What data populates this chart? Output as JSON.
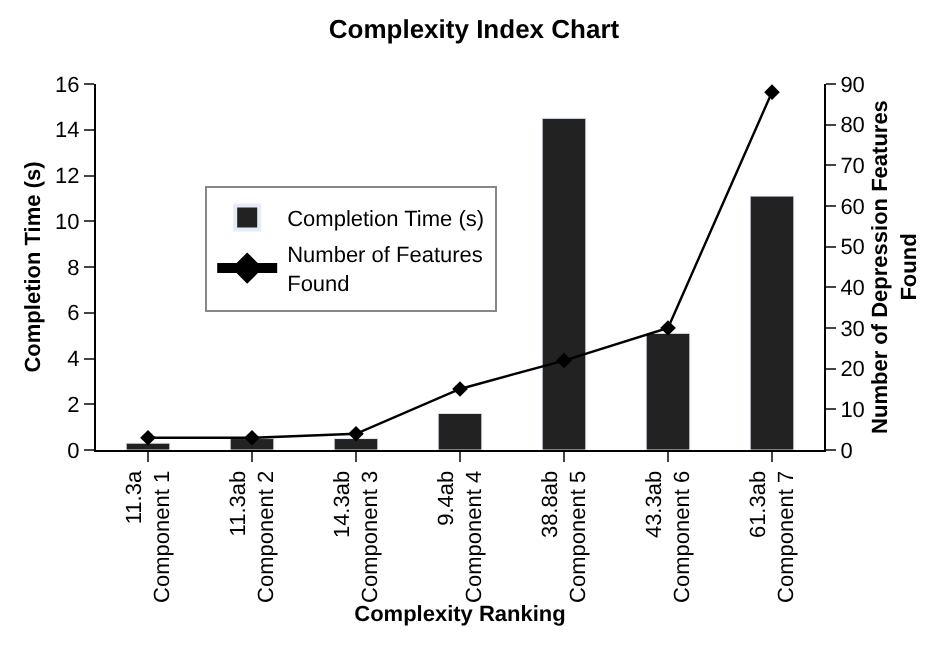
{
  "chart_data": {
    "type": "bar",
    "title": "Complexity Index Chart",
    "xlabel": "Complexity Ranking",
    "ylabel": "Completion Time (s)",
    "y2label": "Number of Depression Features\nFound",
    "categories": [
      "11.3a\nComponent 1",
      "11.3ab\nComponent 2",
      "14.3ab\nComponent 3",
      "9.4ab\nComponent 4",
      "38.8ab\nComponent 5",
      "43.3ab\nComponent 6",
      "61.3ab\nComponent 7"
    ],
    "series": [
      {
        "name": "Completion Time (s)",
        "color": "#222222",
        "values": [
          0.3,
          0.5,
          0.5,
          1.6,
          14.5,
          5.1,
          11.1
        ]
      },
      {
        "name": "Number of Features\nFound",
        "type": "line",
        "axis": "y2",
        "color": "#000000",
        "marker": "diamond",
        "values": [
          3,
          3,
          4,
          15,
          22,
          30,
          88
        ]
      }
    ],
    "ylim": [
      0,
      16
    ],
    "yticks": [
      0,
      2,
      4,
      6,
      8,
      10,
      12,
      14,
      16
    ],
    "y2lim": [
      0,
      90
    ],
    "y2ticks": [
      0,
      10,
      20,
      30,
      40,
      50,
      60,
      70,
      80,
      90
    ],
    "legend": "top left"
  }
}
